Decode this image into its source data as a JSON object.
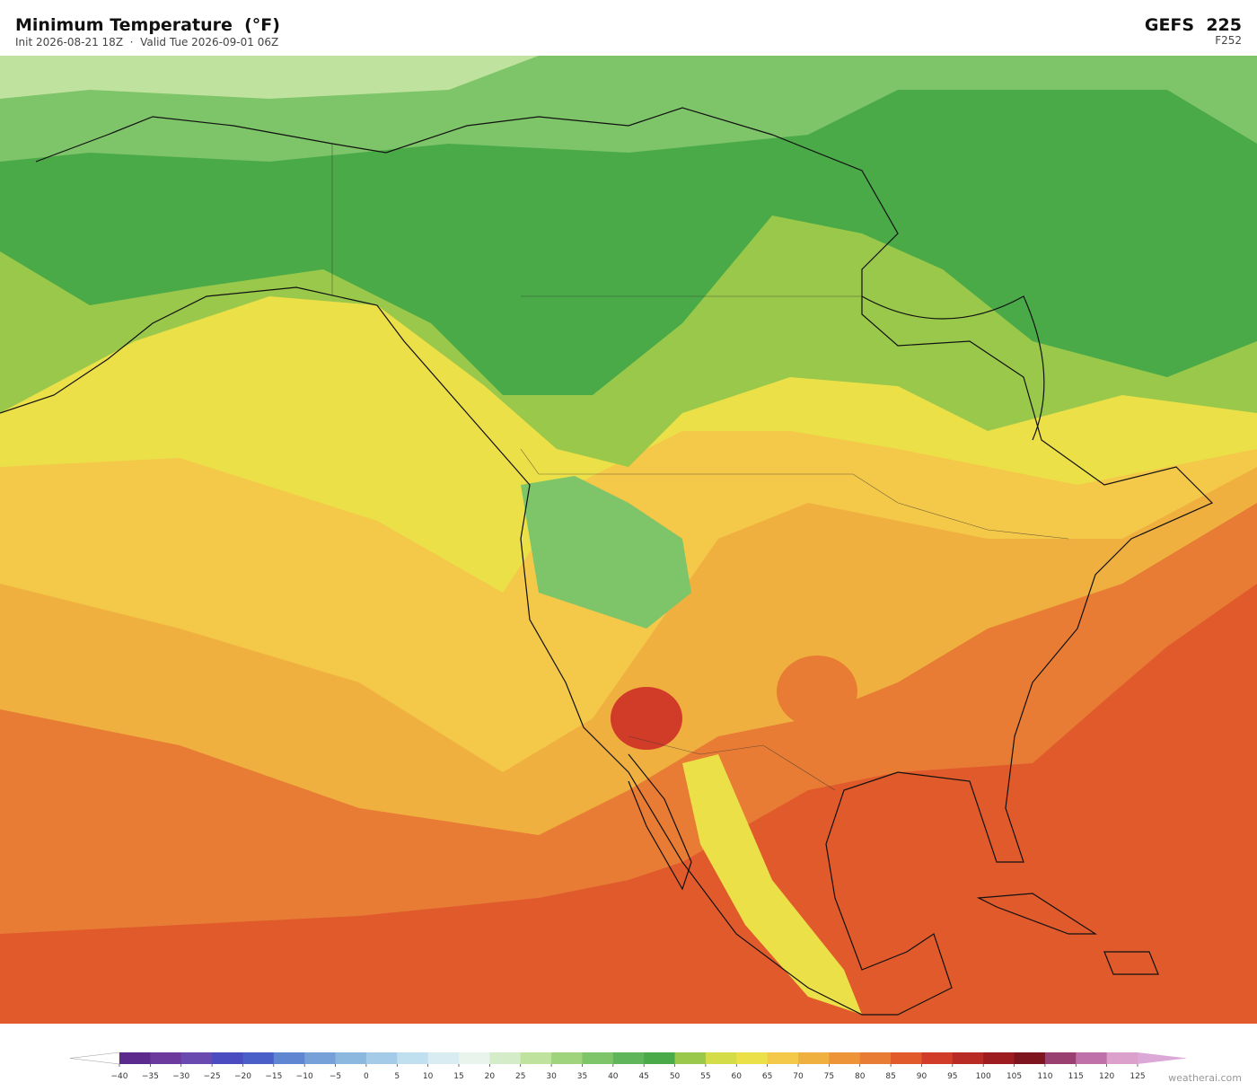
{
  "header": {
    "title": "Minimum Temperature  (°F)",
    "subtitle": "Init 2026-08-21 18Z  ·  Valid Tue 2026-09-01 06Z",
    "model": "GEFS  225",
    "forecast_hour": "F252"
  },
  "colorbar": {
    "labels": [
      "−40",
      "−35",
      "−30",
      "−25",
      "−20",
      "−15",
      "−10",
      "−5",
      "0",
      "5",
      "10",
      "15",
      "20",
      "25",
      "30",
      "35",
      "40",
      "45",
      "50",
      "55",
      "60",
      "65",
      "70",
      "75",
      "80",
      "85",
      "90",
      "95",
      "100",
      "105",
      "110",
      "115",
      "120",
      "125"
    ],
    "colors": [
      "#5b2a8c",
      "#6b3a9c",
      "#6a4aae",
      "#4a4cc0",
      "#4a60c8",
      "#5f86d0",
      "#76a0d8",
      "#8cb8e0",
      "#a4cbe8",
      "#c0e0f0",
      "#d8ecf2",
      "#e8f4ec",
      "#d4ecc8",
      "#bfe29e",
      "#9fd47c",
      "#7ec468",
      "#5fb55a",
      "#4aaa48",
      "#99c84a",
      "#d4dc48",
      "#ece048",
      "#f4c848",
      "#f0b040",
      "#ee9438",
      "#e87c34",
      "#e05a2c",
      "#d03c28",
      "#b82a24",
      "#9c1c20",
      "#7e141e",
      "#9a4070",
      "#c070a8",
      "#dca0cc"
    ],
    "extend_low_color": "#ffffff",
    "extend_high_color": "#dca8d8"
  },
  "watermark": "weatherai.com"
}
